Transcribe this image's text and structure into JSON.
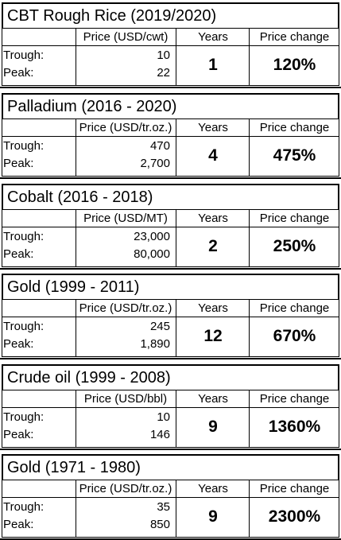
{
  "blocks": [
    {
      "title": "CBT Rough Rice (2019/2020)",
      "price_header": "Price (USD/cwt)",
      "years_header": "Years",
      "change_header": "Price change",
      "trough_label": "Trough:",
      "peak_label": "Peak:",
      "trough": "10",
      "peak": "22",
      "years": "1",
      "change": "120%"
    },
    {
      "title": "Palladium (2016 - 2020)",
      "price_header": "Price (USD/tr.oz.)",
      "years_header": "Years",
      "change_header": "Price change",
      "trough_label": "Trough:",
      "peak_label": "Peak:",
      "trough": "470",
      "peak": "2,700",
      "years": "4",
      "change": "475%"
    },
    {
      "title": "Cobalt (2016 - 2018)",
      "price_header": "Price (USD/MT)",
      "years_header": "Years",
      "change_header": "Price change",
      "trough_label": "Trough:",
      "peak_label": "Peak:",
      "trough": "23,000",
      "peak": "80,000",
      "years": "2",
      "change": "250%"
    },
    {
      "title": "Gold (1999 - 2011)",
      "price_header": "Price (USD/tr.oz.)",
      "years_header": "Years",
      "change_header": "Price change",
      "trough_label": "Trough:",
      "peak_label": "Peak:",
      "trough": "245",
      "peak": "1,890",
      "years": "12",
      "change": "670%"
    },
    {
      "title": "Crude oil (1999 - 2008)",
      "price_header": "Price (USD/bbl)",
      "years_header": "Years",
      "change_header": "Price change",
      "trough_label": "Trough:",
      "peak_label": "Peak:",
      "trough": "10",
      "peak": "146",
      "years": "9",
      "change": "1360%"
    },
    {
      "title": "Gold (1971 - 1980)",
      "price_header": "Price (USD/tr.oz.)",
      "years_header": "Years",
      "change_header": "Price change",
      "trough_label": "Trough:",
      "peak_label": "Peak:",
      "trough": "35",
      "peak": "850",
      "years": "9",
      "change": "2300%"
    }
  ]
}
